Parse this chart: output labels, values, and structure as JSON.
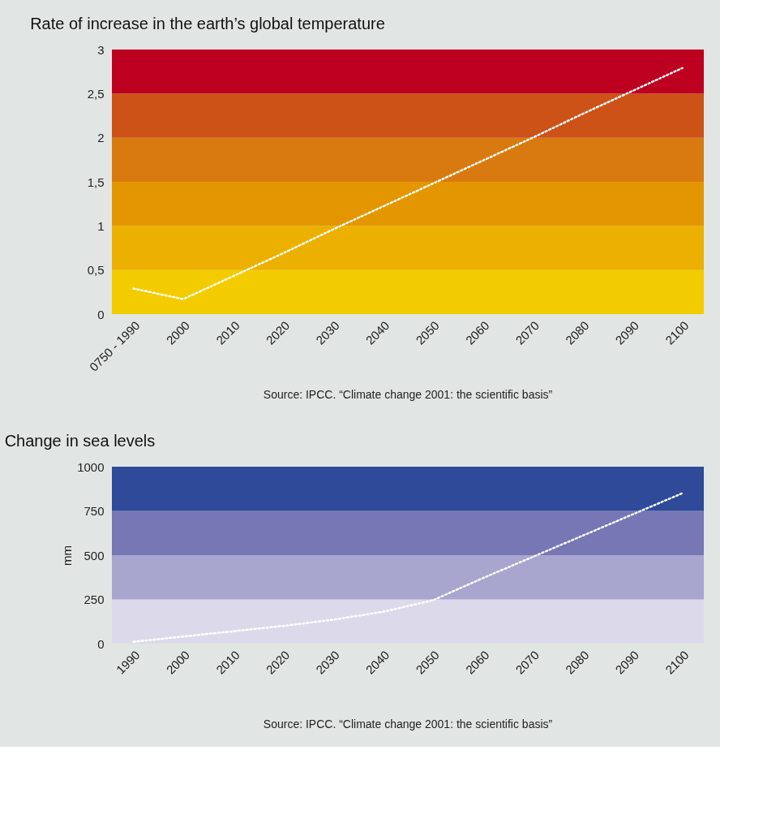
{
  "chart_data": [
    {
      "type": "line",
      "title": "Rate of increase in the earth’s global temperature",
      "categories": [
        "0750 - 1990",
        "2000",
        "2010",
        "2020",
        "2030",
        "2040",
        "2050",
        "2060",
        "2070",
        "2080",
        "2090",
        "2100"
      ],
      "series": [
        {
          "color": "#ffffff",
          "values": [
            0.29,
            0.17,
            0.43,
            0.69,
            0.96,
            1.22,
            1.48,
            1.74,
            2.0,
            2.27,
            2.53,
            2.79
          ]
        }
      ],
      "ylim": [
        0,
        3
      ],
      "yticks": [
        0,
        {
          "value": 0.5,
          "label": "0,5"
        },
        1,
        {
          "value": 1.5,
          "label": "1,5"
        },
        2,
        {
          "value": 2.5,
          "label": "2,5"
        },
        3
      ],
      "bands": [
        {
          "axis": "y",
          "from": 0,
          "to": 0.5,
          "color": "#f3cc00"
        },
        {
          "axis": "y",
          "from": 0.5,
          "to": 1,
          "color": "#ecb000"
        },
        {
          "axis": "y",
          "from": 1,
          "to": 1.5,
          "color": "#e39600"
        },
        {
          "axis": "y",
          "from": 1.5,
          "to": 2,
          "color": "#d97a10"
        },
        {
          "axis": "y",
          "from": 2,
          "to": 2.5,
          "color": "#cc5218"
        },
        {
          "axis": "y",
          "from": 2.5,
          "to": 3,
          "color": "#be0020"
        }
      ],
      "line_style": "dotted",
      "marker": "none",
      "grid": false,
      "annotations": [
        "Source: IPCC. “Climate change 2001: the scientific basis”"
      ]
    },
    {
      "type": "line",
      "title": "Change in sea levels",
      "ylabel": "mm",
      "categories": [
        "1990",
        "2000",
        "2010",
        "2020",
        "2030",
        "2040",
        "2050",
        "2060",
        "2070",
        "2080",
        "2090",
        "2100"
      ],
      "series": [
        {
          "color": "#ffffff",
          "values": [
            10,
            40,
            70,
            100,
            135,
            180,
            245,
            370,
            490,
            610,
            730,
            850
          ]
        }
      ],
      "ylim": [
        0,
        1000
      ],
      "yticks": [
        0,
        250,
        500,
        750,
        1000
      ],
      "bands": [
        {
          "axis": "y",
          "from": 0,
          "to": 250,
          "color": "#dcdaea"
        },
        {
          "axis": "y",
          "from": 250,
          "to": 500,
          "color": "#a8a6cf"
        },
        {
          "axis": "y",
          "from": 500,
          "to": 750,
          "color": "#7777b5"
        },
        {
          "axis": "y",
          "from": 750,
          "to": 1000,
          "color": "#2f4a99"
        }
      ],
      "line_style": "dotted",
      "marker": "none",
      "grid": false,
      "annotations": [
        "Source: IPCC. “Climate change 2001: the scientific basis”"
      ]
    }
  ]
}
